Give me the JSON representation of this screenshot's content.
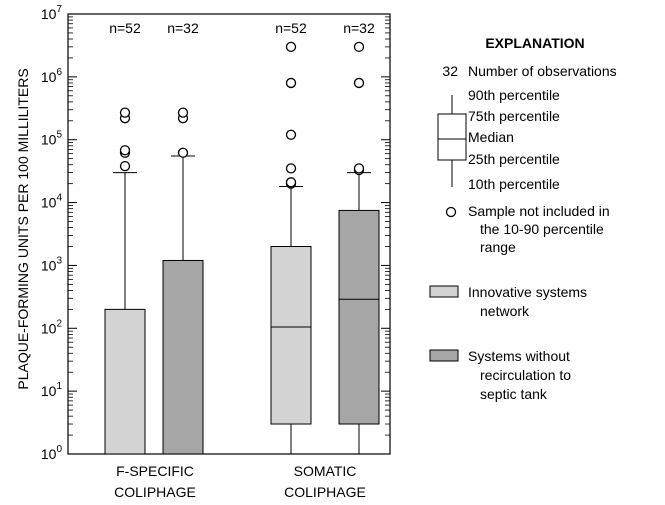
{
  "chart_data": {
    "type": "box",
    "ylabel": "PLAQUE-FORMING UNITS PER 100 MILLILITERS",
    "y_scale": "log",
    "ylim": [
      1,
      10000000
    ],
    "y_ticks": [
      {
        "value": 1,
        "base": "10",
        "exp": "0"
      },
      {
        "value": 10,
        "base": "10",
        "exp": "1"
      },
      {
        "value": 100,
        "base": "10",
        "exp": "2"
      },
      {
        "value": 1000,
        "base": "10",
        "exp": "3"
      },
      {
        "value": 10000,
        "base": "10",
        "exp": "4"
      },
      {
        "value": 100000,
        "base": "10",
        "exp": "5"
      },
      {
        "value": 1000000,
        "base": "10",
        "exp": "6"
      },
      {
        "value": 10000000,
        "base": "10",
        "exp": "7"
      }
    ],
    "groups": [
      {
        "label_lines": [
          "F-SPECIFIC",
          "COLIPHAGE"
        ]
      },
      {
        "label_lines": [
          "SOMATIC",
          "COLIPHAGE"
        ]
      }
    ],
    "boxes": [
      {
        "group": 0,
        "series": 0,
        "n_label": "n=52",
        "p10": 1,
        "p25": 1,
        "median": 1,
        "p75": 200,
        "p90": 30000,
        "outliers": [
          38000,
          62000,
          68000,
          220000,
          270000
        ]
      },
      {
        "group": 0,
        "series": 1,
        "n_label": "n=32",
        "p10": 1,
        "p25": 1,
        "median": 1,
        "p75": 1200,
        "p90": 55000,
        "outliers": [
          62000,
          220000,
          270000
        ]
      },
      {
        "group": 1,
        "series": 0,
        "n_label": "n=52",
        "p10": 1,
        "p25": 3,
        "median": 105,
        "p75": 2000,
        "p90": 18000,
        "outliers": [
          20000,
          21000,
          35000,
          120000,
          800000,
          3000000
        ]
      },
      {
        "group": 1,
        "series": 1,
        "n_label": "n=32",
        "p10": 1,
        "p25": 3,
        "median": 290,
        "p75": 7500,
        "p90": 30000,
        "outliers": [
          33000,
          35000,
          800000,
          3000000
        ]
      }
    ],
    "series": [
      {
        "name_lines": [
          "Innovative systems",
          "network"
        ],
        "color": "#d3d3d3"
      },
      {
        "name_lines": [
          "Systems without",
          "recirculation to",
          "septic tank"
        ],
        "color": "#a6a6a6"
      }
    ],
    "explanation": {
      "title": "EXPLANATION",
      "n_value": "32",
      "n_text": "Number of observations",
      "p90": "90th percentile",
      "p75": "75th percentile",
      "median": "Median",
      "p25": "25th percentile",
      "p10": "10th percentile",
      "outlier_lines": [
        "Sample not included in",
        "the 10-90 percentile",
        "range"
      ]
    }
  }
}
